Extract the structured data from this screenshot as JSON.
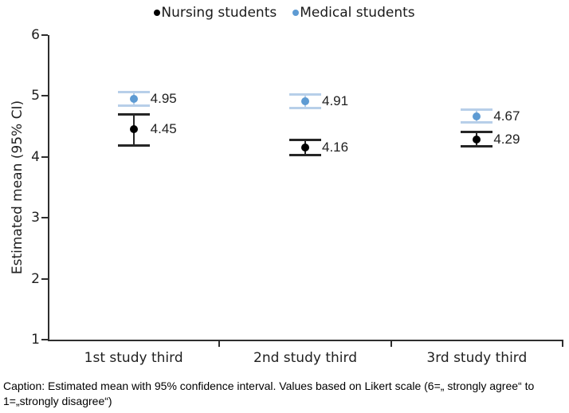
{
  "chart_data": {
    "type": "scatter",
    "title": "",
    "ylabel": "Estimated mean (95% CI)",
    "xlabel": "",
    "ylim": [
      1,
      6
    ],
    "yticks": [
      1,
      2,
      3,
      4,
      5,
      6
    ],
    "grid": false,
    "legend_position": "top",
    "categories": [
      "1st study third",
      "2nd study third",
      "3rd study third"
    ],
    "series": [
      {
        "name": "Nursing students",
        "marker_color": "#000000",
        "error_color": "#262626",
        "values": [
          4.45,
          4.16,
          4.29
        ],
        "ci_lower": [
          4.18,
          4.03,
          4.17
        ],
        "ci_upper": [
          4.71,
          4.29,
          4.41
        ],
        "labels": [
          "4.45",
          "4.16",
          "4.29"
        ]
      },
      {
        "name": "Medical students",
        "marker_color": "#5e9bd3",
        "error_color": "#b7cfe9",
        "values": [
          4.95,
          4.91,
          4.67
        ],
        "ci_lower": [
          4.83,
          4.79,
          4.56
        ],
        "ci_upper": [
          5.07,
          5.03,
          4.78
        ],
        "labels": [
          "4.95",
          "4.91",
          "4.67"
        ]
      }
    ]
  },
  "caption": {
    "line1": "Caption: Estimated mean with 95% confidence interval. Values based on Likert scale (6=„ strongly agree“ to",
    "line2": "1=„strongly disagree“)"
  }
}
